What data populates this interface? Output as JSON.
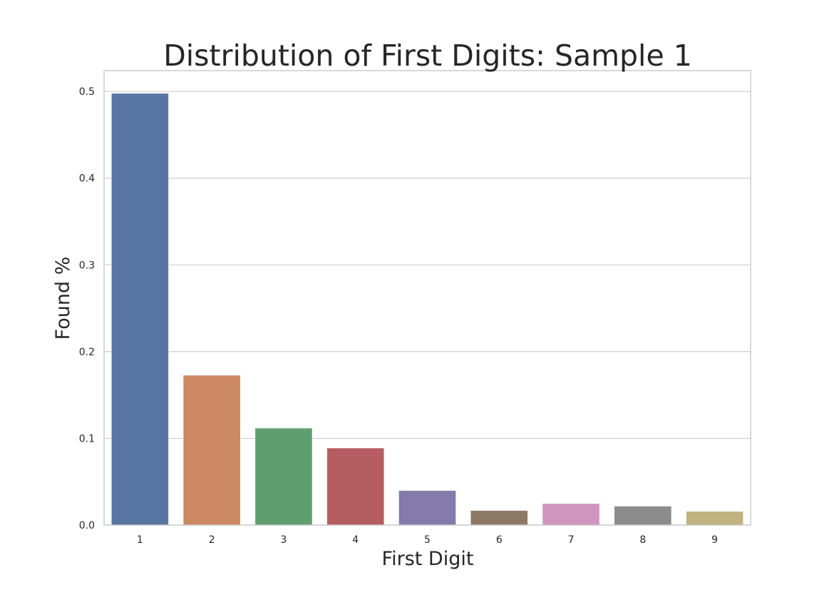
{
  "chart_data": {
    "type": "bar",
    "title": "Distribution of First Digits: Sample 1",
    "xlabel": "First Digit",
    "ylabel": "Found %",
    "categories": [
      "1",
      "2",
      "3",
      "4",
      "5",
      "6",
      "7",
      "8",
      "9"
    ],
    "values": [
      0.498,
      0.173,
      0.112,
      0.089,
      0.04,
      0.017,
      0.025,
      0.022,
      0.016
    ],
    "colors": [
      "#5975a4",
      "#cc8963",
      "#5f9e6e",
      "#b55d60",
      "#857aab",
      "#8d7866",
      "#d095bf",
      "#8c8c8c",
      "#c1b37f"
    ],
    "ylim": [
      0,
      0.524
    ],
    "yticks": [
      0.0,
      0.1,
      0.2,
      0.3,
      0.4,
      0.5
    ],
    "ytick_labels": [
      "0.0",
      "0.1",
      "0.2",
      "0.3",
      "0.4",
      "0.5"
    ],
    "grid": true
  }
}
